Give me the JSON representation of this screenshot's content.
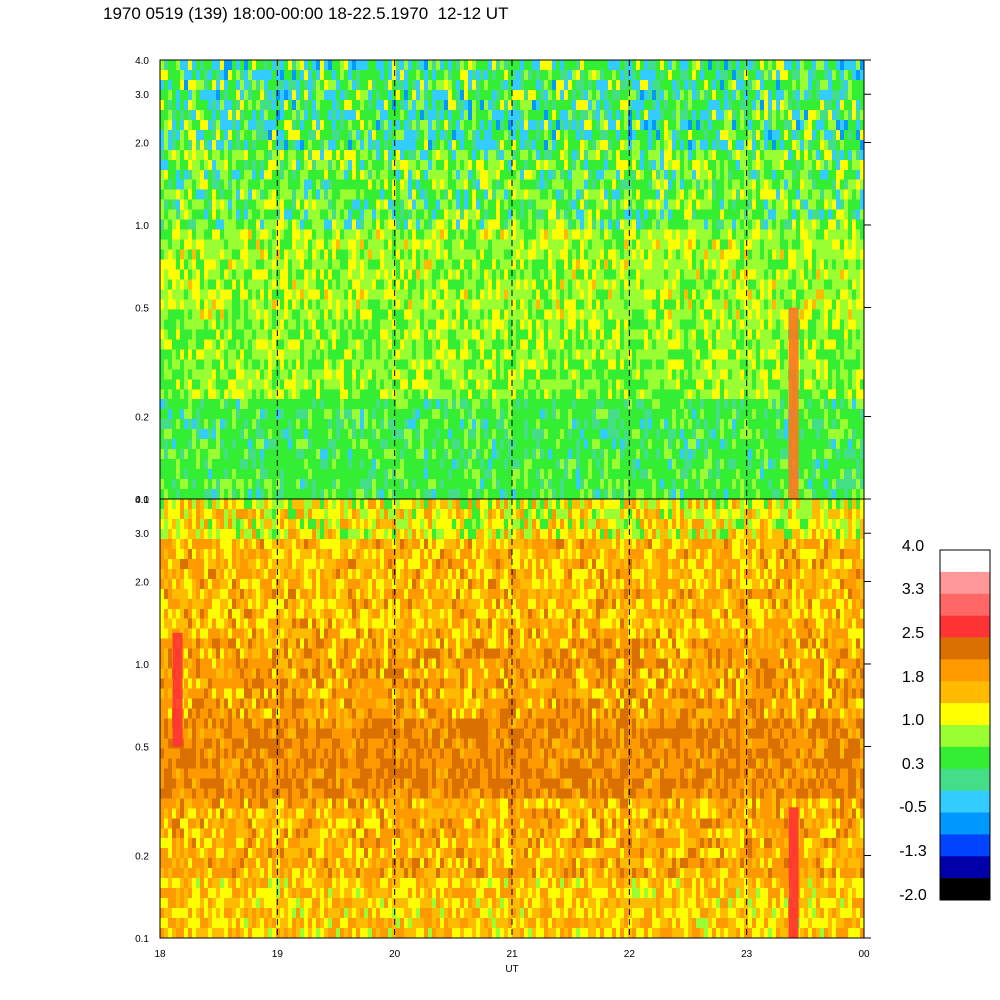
{
  "title": "1970 0519 (139) 18:00-00:00 18-22.5.1970  12-12 UT",
  "chart_data": [
    {
      "type": "heatmap",
      "panel": "top",
      "title": "",
      "xlabel": "",
      "ylabel": "",
      "ylim": [
        0.1,
        4.0
      ],
      "yscale": "log",
      "ytick_labels": [
        "0.1",
        "0.2",
        "0.5",
        "1.0",
        "2.0",
        "3.0",
        "4.0"
      ],
      "xlim": [
        18,
        24
      ],
      "vlines": [
        19,
        20,
        21,
        22,
        23
      ],
      "dominant_levels": [
        {
          "y_range": [
            2.0,
            4.0
          ],
          "colors": [
            "green",
            "light blue",
            "yellow"
          ]
        },
        {
          "y_range": [
            0.5,
            2.0
          ],
          "colors": [
            "yellow-green",
            "green",
            "yellow"
          ]
        },
        {
          "y_range": [
            0.1,
            0.3
          ],
          "colors": [
            "green",
            "teal"
          ]
        }
      ],
      "notable_features": [
        {
          "x": 23.4,
          "y_range": [
            0.1,
            0.5
          ],
          "color": "orange"
        }
      ]
    },
    {
      "type": "heatmap",
      "panel": "bottom",
      "title": "",
      "xlabel": "UT",
      "ylabel": "",
      "ylim": [
        0.1,
        4.0
      ],
      "yscale": "log",
      "ytick_labels": [
        "0.1",
        "0.2",
        "0.5",
        "1.0",
        "2.0",
        "3.0",
        "4.0"
      ],
      "xlim": [
        18,
        24
      ],
      "xtick_labels": [
        "18",
        "19",
        "20",
        "21",
        "22",
        "23",
        "00"
      ],
      "vlines": [
        19,
        20,
        21,
        22,
        23
      ],
      "dominant_levels": [
        {
          "y_range": [
            2.5,
            4.0
          ],
          "colors": [
            "yellow",
            "yellow-green",
            "orange"
          ]
        },
        {
          "y_range": [
            1.0,
            2.5
          ],
          "colors": [
            "orange",
            "yellow"
          ]
        },
        {
          "y_range": [
            0.4,
            1.0
          ],
          "colors": [
            "dark orange",
            "orange"
          ]
        },
        {
          "y_range": [
            0.1,
            0.4
          ],
          "colors": [
            "orange",
            "yellow"
          ]
        }
      ],
      "notable_features": [
        {
          "x": 18.15,
          "y_range": [
            0.5,
            1.3
          ],
          "color": "red"
        },
        {
          "x": 23.4,
          "y_range": [
            0.1,
            0.3
          ],
          "color": "red"
        }
      ]
    }
  ],
  "colorbar": {
    "labels": [
      "4.0",
      "3.3",
      "2.5",
      "1.8",
      "1.0",
      "0.3",
      "-0.5",
      "-1.3",
      "-2.0"
    ],
    "colors": [
      "#ffffff",
      "#ff9999",
      "#ff6666",
      "#ff3333",
      "#d97000",
      "#ff9900",
      "#ffbb00",
      "#ffff00",
      "#99ff33",
      "#33ee33",
      "#44dd88",
      "#33ccff",
      "#0099ff",
      "#0044ff",
      "#0000aa",
      "#000000"
    ]
  }
}
